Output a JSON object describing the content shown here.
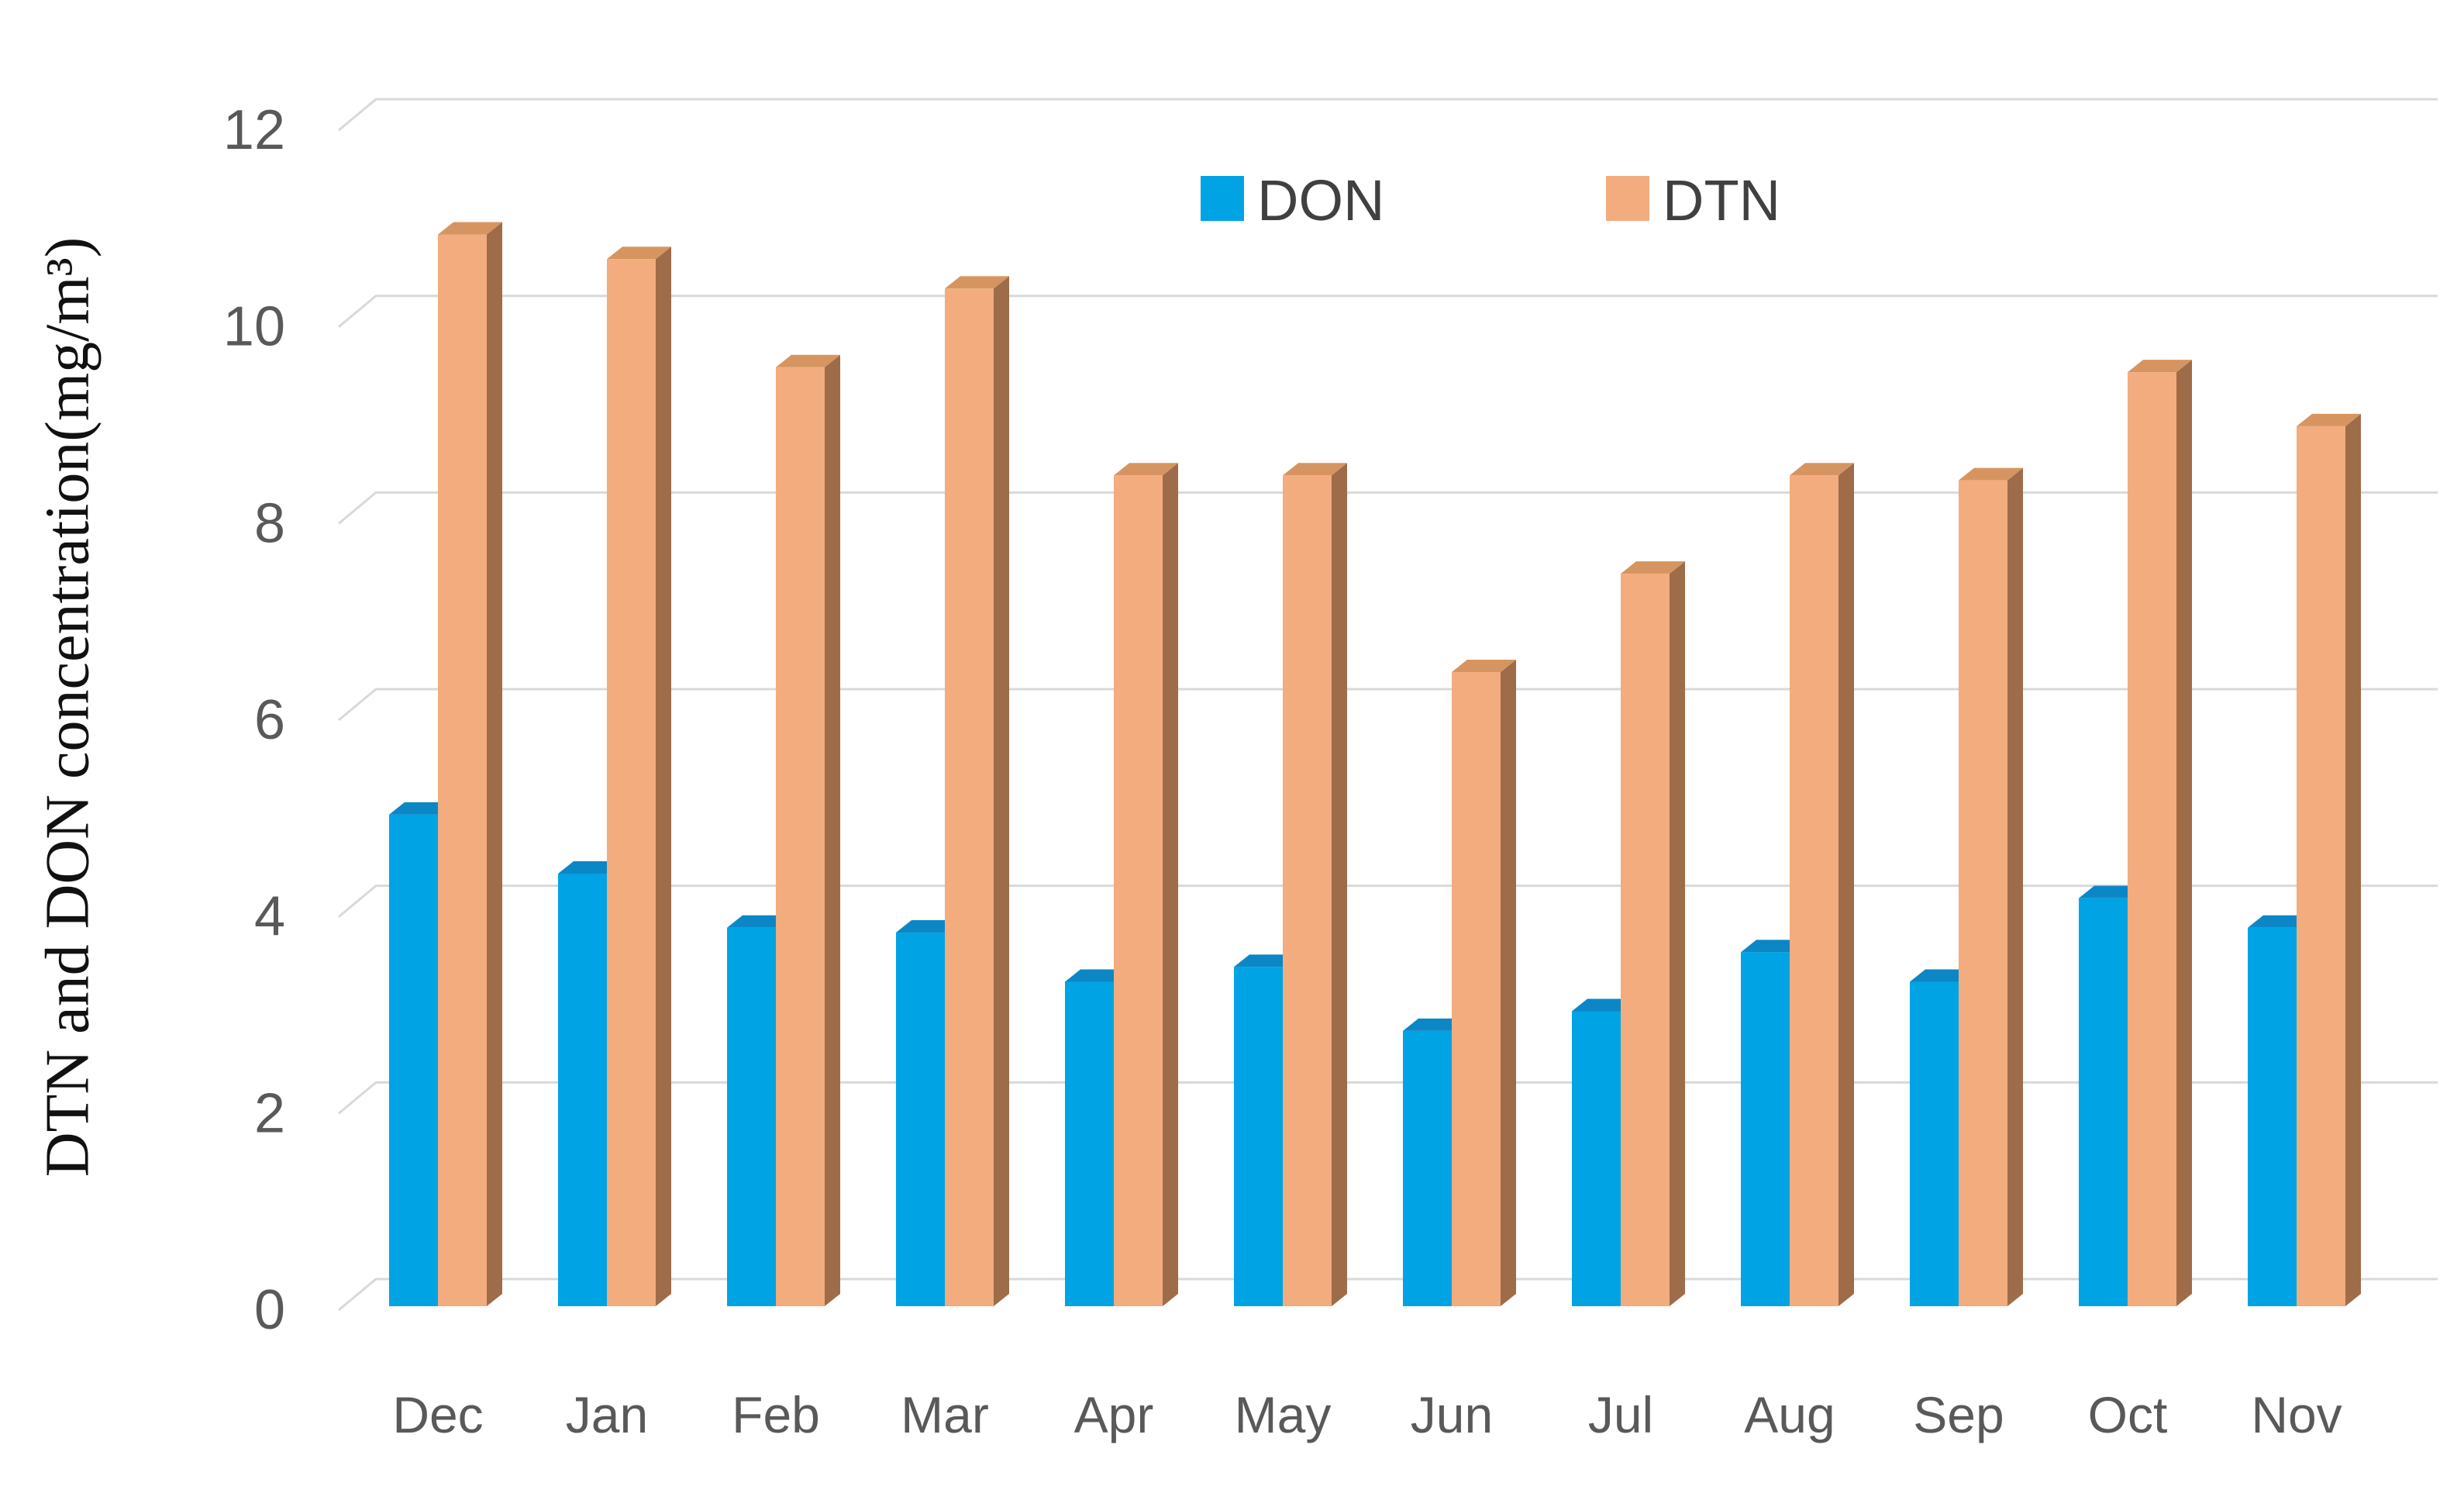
{
  "chart_data": {
    "type": "bar",
    "style": "3d-beveled-columns",
    "title": "",
    "categories": [
      "Dec",
      "Jan",
      "Feb",
      "Mar",
      "Apr",
      "May",
      "Jun",
      "Jul",
      "Aug",
      "Sep",
      "Oct",
      "Nov"
    ],
    "series": [
      {
        "name": "DON",
        "color": "#00A3E4",
        "top_color": "#0C87C6",
        "side_color": "#15719F",
        "values": [
          5.0,
          4.4,
          3.85,
          3.8,
          3.3,
          3.45,
          2.8,
          3.0,
          3.6,
          3.3,
          4.15,
          3.85
        ]
      },
      {
        "name": "DTN",
        "color": "#F2AC7E",
        "top_color": "#D69560",
        "side_color": "#9E6C49",
        "values": [
          10.9,
          10.65,
          9.55,
          10.35,
          8.45,
          8.45,
          6.45,
          7.45,
          8.45,
          8.4,
          9.5,
          8.95
        ]
      }
    ],
    "xlabel": "",
    "ylabel": "DTN and DON concentration(mg/m³)",
    "yticks": [
      0,
      2,
      4,
      6,
      8,
      10,
      12
    ],
    "ylim": [
      0,
      12
    ],
    "grid": true,
    "grid_color": "#D9D9D9",
    "tick_color": "#595959",
    "legend_position": "top-center",
    "legend_text_color": "#404040",
    "background_color": "#FFFFFF"
  }
}
